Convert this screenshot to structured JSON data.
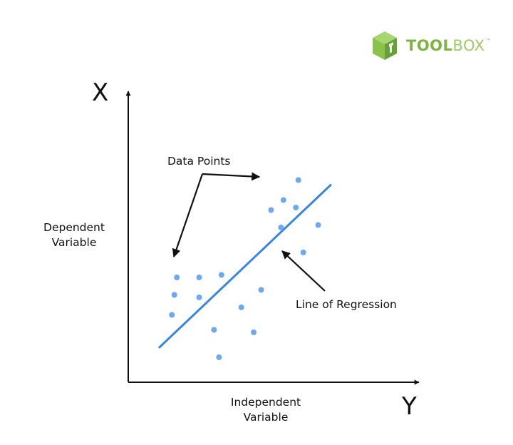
{
  "brand": {
    "name_bold": "TOOL",
    "name_light": "BOX",
    "trademark": "™",
    "colors": {
      "light": "#a5d66f",
      "mid": "#8bc34a",
      "dark": "#689f38"
    },
    "icon": "cube-logo-icon"
  },
  "chart_data": {
    "type": "scatter",
    "title": "",
    "y_axis_letter": "X",
    "x_axis_letter": "Y",
    "ylabel_lines": [
      "Dependent",
      "Variable"
    ],
    "xlabel_lines": [
      "Independent",
      "Variable"
    ],
    "xlim": [
      0,
      100
    ],
    "ylim": [
      0,
      100
    ],
    "grid": false,
    "point_color": "#6ea8f0",
    "line_color": "#3a86d8",
    "axis_color": "#111111",
    "points": [
      {
        "x": 15,
        "y": 38
      },
      {
        "x": 24,
        "y": 38
      },
      {
        "x": 33,
        "y": 39
      },
      {
        "x": 14,
        "y": 31
      },
      {
        "x": 24,
        "y": 30
      },
      {
        "x": 13,
        "y": 23
      },
      {
        "x": 41,
        "y": 26
      },
      {
        "x": 49,
        "y": 33
      },
      {
        "x": 30,
        "y": 17
      },
      {
        "x": 46,
        "y": 16
      },
      {
        "x": 32,
        "y": 6
      },
      {
        "x": 53,
        "y": 65
      },
      {
        "x": 57,
        "y": 58
      },
      {
        "x": 58,
        "y": 69
      },
      {
        "x": 63,
        "y": 66
      },
      {
        "x": 64,
        "y": 77
      },
      {
        "x": 72,
        "y": 59
      },
      {
        "x": 66,
        "y": 48
      }
    ],
    "regression_line": {
      "x": [
        8,
        77
      ],
      "y": [
        10,
        75
      ]
    },
    "annotations": {
      "data_points": "Data Points",
      "line_of_regression": "Line of Regression"
    }
  }
}
